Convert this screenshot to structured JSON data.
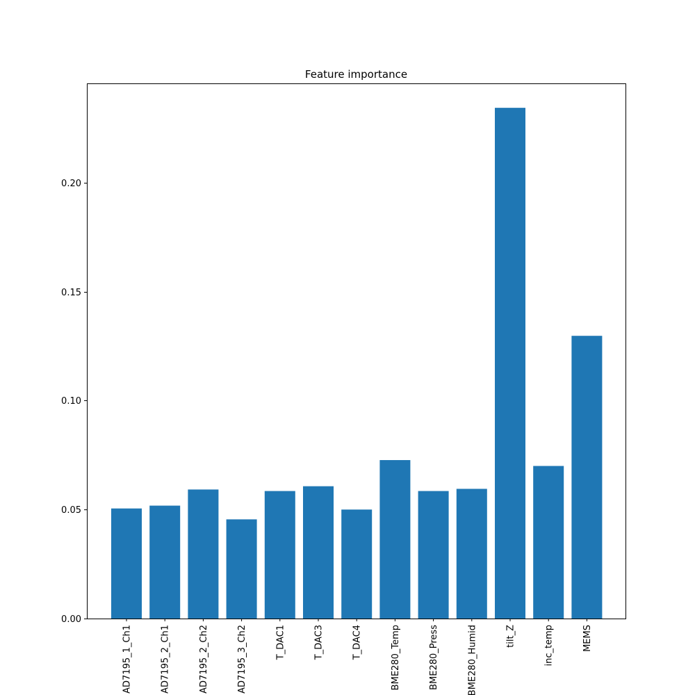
{
  "chart_data": {
    "type": "bar",
    "title": "Feature importance",
    "xlabel": "",
    "ylabel": "",
    "categories": [
      "AD7195_1_Ch1",
      "AD7195_2_Ch1",
      "AD7195_2_Ch2",
      "AD7195_3_Ch2",
      "T_DAC1",
      "T_DAC3",
      "T_DAC4",
      "BME280_Temp",
      "BME280_Press",
      "BME280_Humid",
      "tilt_Z",
      "inc_temp",
      "MEMS"
    ],
    "values": [
      0.0505,
      0.0518,
      0.0592,
      0.0455,
      0.0585,
      0.0607,
      0.05,
      0.0727,
      0.0585,
      0.0595,
      0.2343,
      0.07,
      0.1297
    ],
    "ylim": [
      0,
      0.2455
    ],
    "yticks": [
      0.0,
      0.05,
      0.1,
      0.15,
      0.2
    ],
    "ytick_labels": [
      "0.00",
      "0.05",
      "0.10",
      "0.15",
      "0.20"
    ],
    "bar_color": "#1f77b4",
    "grid": false,
    "legend": "none"
  }
}
